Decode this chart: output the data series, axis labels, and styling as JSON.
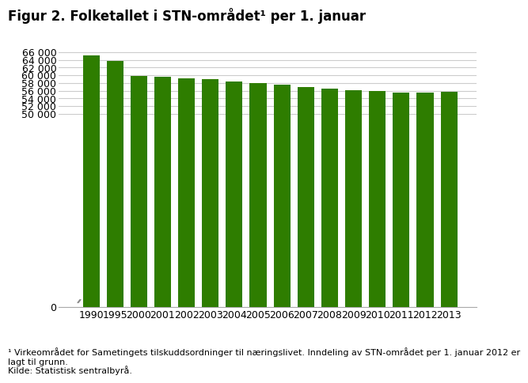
{
  "categories": [
    "1990",
    "1995",
    "2000",
    "2001",
    "2002",
    "2003",
    "2004",
    "2005",
    "2006",
    "2007",
    "2008",
    "2009",
    "2010",
    "2011",
    "2012",
    "2013"
  ],
  "values": [
    65100,
    63800,
    59900,
    59600,
    59200,
    58900,
    58300,
    57900,
    57500,
    56900,
    56500,
    56100,
    55900,
    55600,
    55600,
    55700
  ],
  "bar_color": "#2e7d00",
  "title": "Figur 2. Folketallet i STN-området¹ per 1. januar",
  "ylim": [
    0,
    67000
  ],
  "yticks": [
    0,
    50000,
    52000,
    54000,
    56000,
    58000,
    60000,
    62000,
    64000,
    66000
  ],
  "ytick_labels": [
    "0",
    "50 000",
    "52 000",
    "54 000",
    "56 000",
    "58 000",
    "60 000",
    "62 000",
    "64 000",
    "66 000"
  ],
  "background_color": "#ffffff",
  "grid_color": "#cccccc",
  "footnote_line1": "¹ Virkeområdet for Sametingets tilskuddsordninger til næringslivet. Inndeling av STN-området per 1. januar 2012 er",
  "footnote_line2": "lagt til grunn.",
  "footnote_line3": "Kilde: Statistisk sentralbyrå.",
  "title_fontsize": 12,
  "tick_fontsize": 9,
  "footnote_fontsize": 8
}
